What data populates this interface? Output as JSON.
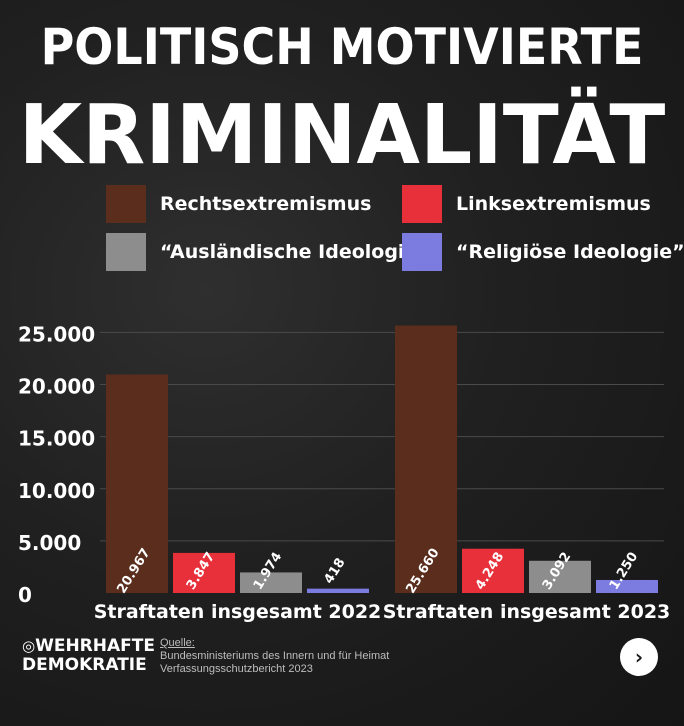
{
  "header": {
    "title_line1": "POLITISCH MOTIVIERTE",
    "title_line2": "KRIMINALITÄT"
  },
  "chart_data": {
    "type": "bar",
    "categories": [
      "Straftaten insgesamt 2022",
      "Straftaten insgesamt 2023"
    ],
    "series": [
      {
        "name": "Rechtsextremismus",
        "color": "#5a2d1c",
        "values": [
          20967,
          25660
        ],
        "labels": [
          "20.967",
          "25.660"
        ]
      },
      {
        "name": "Linksextremismus",
        "color": "#e8303a",
        "values": [
          3847,
          4248
        ],
        "labels": [
          "3.847",
          "4.248"
        ]
      },
      {
        "name": "“Ausländische Ideologie”",
        "color": "#8d8d8d",
        "values": [
          1974,
          3092
        ],
        "labels": [
          "1.974",
          "3.092"
        ]
      },
      {
        "name": "“Religiöse Ideologie”",
        "color": "#7b7be0",
        "values": [
          418,
          1250
        ],
        "labels": [
          "418",
          "1.250"
        ]
      }
    ],
    "yticks": [
      0,
      5000,
      10000,
      15000,
      20000,
      25000
    ],
    "ytick_labels": [
      "0",
      "5.000",
      "10.000",
      "15.000",
      "20.000",
      "25.000"
    ],
    "ylim": [
      0,
      26000
    ],
    "grid": true,
    "legend_position": "top"
  },
  "footer": {
    "logo_line1": "WEHRHAFTE",
    "logo_line2": "DEMOKRATIE",
    "logo_icon": "instagram-icon",
    "source_label": "Quelle:",
    "source_line1": "Bundesministeriums des Innern und für Heimat",
    "source_line2": "Verfassungsschutzbericht 2023",
    "next_glyph": "›"
  }
}
